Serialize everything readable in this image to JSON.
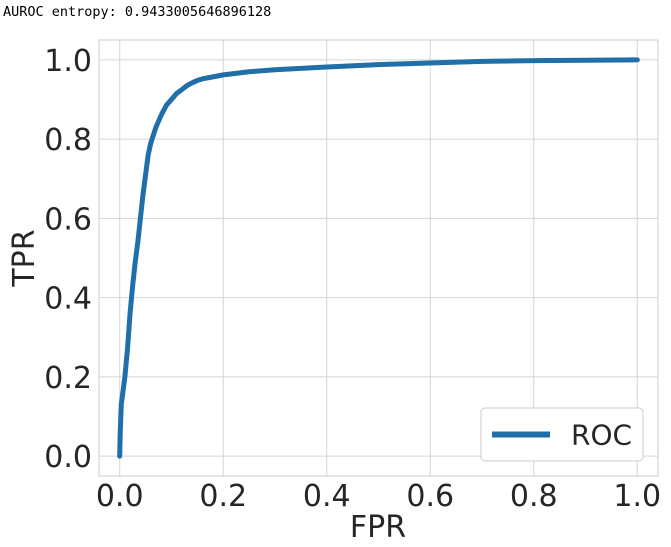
{
  "chart_data": {
    "type": "line",
    "title": "AUROC entropy: 0.9433005646896128",
    "xlabel": "FPR",
    "ylabel": "TPR",
    "xlim": [
      -0.04,
      1.04
    ],
    "ylim": [
      -0.05,
      1.05
    ],
    "xticks": [
      "0.0",
      "0.2",
      "0.4",
      "0.6",
      "0.8",
      "1.0"
    ],
    "yticks": [
      "0.0",
      "0.2",
      "0.4",
      "0.6",
      "0.8",
      "1.0"
    ],
    "grid": true,
    "legend_position": "lower-right",
    "series_color": "#1f6fa9",
    "series": [
      {
        "name": "ROC",
        "x": [
          0.0,
          0.001,
          0.003,
          0.006,
          0.01,
          0.015,
          0.02,
          0.025,
          0.03,
          0.035,
          0.04,
          0.045,
          0.05,
          0.055,
          0.06,
          0.065,
          0.07,
          0.08,
          0.09,
          0.1,
          0.11,
          0.12,
          0.13,
          0.14,
          0.15,
          0.16,
          0.18,
          0.2,
          0.25,
          0.3,
          0.4,
          0.5,
          0.6,
          0.7,
          0.8,
          0.9,
          1.0
        ],
        "y": [
          0.0,
          0.06,
          0.13,
          0.16,
          0.2,
          0.27,
          0.36,
          0.43,
          0.49,
          0.54,
          0.6,
          0.66,
          0.71,
          0.76,
          0.79,
          0.81,
          0.83,
          0.86,
          0.885,
          0.9,
          0.915,
          0.925,
          0.935,
          0.942,
          0.948,
          0.952,
          0.957,
          0.962,
          0.97,
          0.975,
          0.982,
          0.988,
          0.992,
          0.996,
          0.998,
          0.999,
          1.0
        ]
      }
    ]
  }
}
